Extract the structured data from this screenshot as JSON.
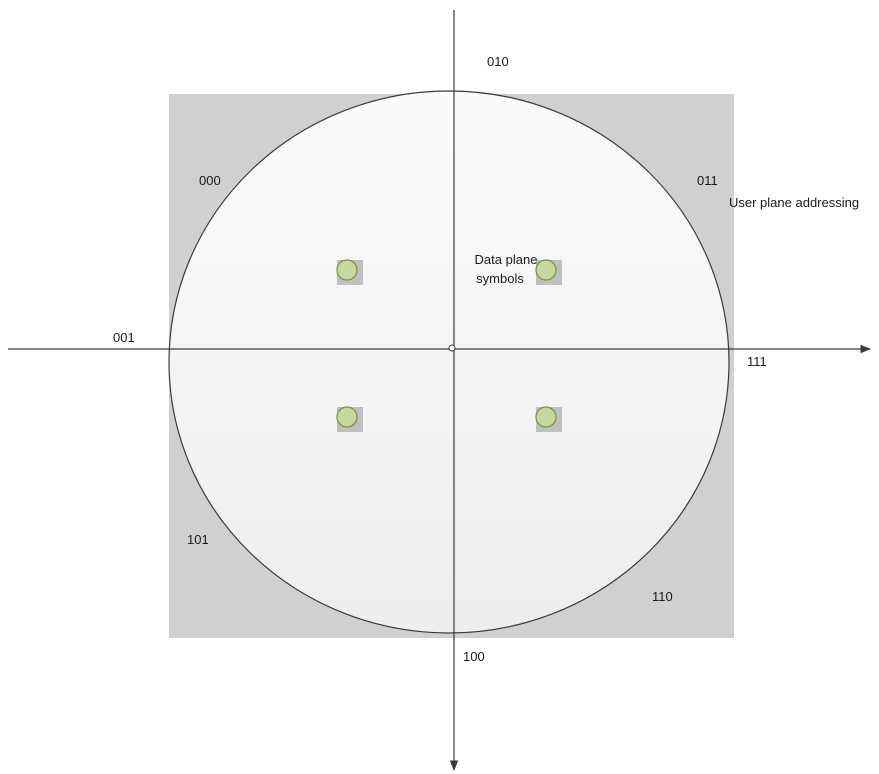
{
  "diagram": {
    "user_plane_label": "User plane addressing",
    "data_plane_label": {
      "line1": "Data plane",
      "line2": "symbols"
    },
    "codes": {
      "top": "010",
      "top_left": "000",
      "top_right": "011",
      "left": "001",
      "right": "111",
      "bottom_left": "101",
      "bottom_right": "110",
      "bottom": "100"
    },
    "colors": {
      "background": "#ffffff",
      "square_fill": "#d0d0d0",
      "circle_fill_light": "#fbfbfb",
      "circle_fill_dark": "#eeeeee",
      "circle_stroke": "#3a3a3a",
      "axis": "#3a3a3a",
      "symbol_fill": "#c6d7a0",
      "symbol_stroke": "#77933c",
      "symbol_shadow": "#bfbfbf"
    }
  }
}
